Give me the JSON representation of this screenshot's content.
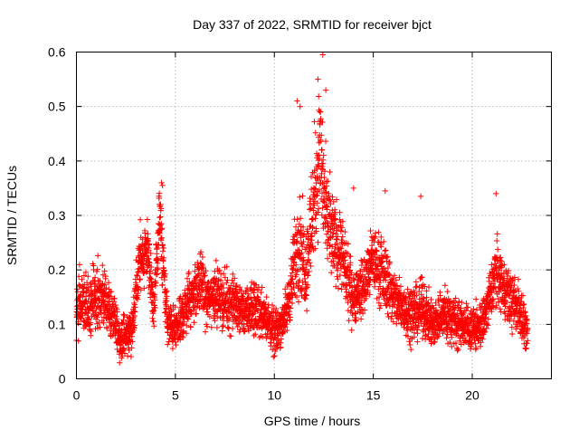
{
  "chart_data": {
    "type": "scatter",
    "title": "Day 337 of 2022, SRMTID for receiver bjct",
    "xlabel": "GPS time / hours",
    "ylabel": "SRMTID / TECUs",
    "xlim": [
      0,
      24
    ],
    "ylim": [
      0,
      0.6
    ],
    "x_ticks": [
      0,
      5,
      10,
      15,
      20
    ],
    "x_tick_labels": [
      "0",
      "5",
      "10",
      "15",
      "20"
    ],
    "y_ticks": [
      0,
      0.1,
      0.2,
      0.3,
      0.4,
      0.5,
      0.6
    ],
    "y_tick_labels": [
      "0",
      "0.1",
      "0.2",
      "0.3",
      "0.4",
      "0.5",
      "0.6"
    ],
    "grid": true,
    "marker": "+",
    "color": "#ff0000",
    "series": [
      {
        "name": "SRMTID",
        "envelope": {
          "x": [
            0,
            0.3,
            0.6,
            1.0,
            1.5,
            2.0,
            2.2,
            2.5,
            2.8,
            3.2,
            3.6,
            3.9,
            4.2,
            4.4,
            4.6,
            5.0,
            5.2,
            5.6,
            6.0,
            6.3,
            6.6,
            7.0,
            7.5,
            8.0,
            8.5,
            9.0,
            9.5,
            10.0,
            10.3,
            10.6,
            10.9,
            11.2,
            11.6,
            12.0,
            12.3,
            12.6,
            12.9,
            13.3,
            13.7,
            14.0,
            14.5,
            15.0,
            15.3,
            15.7,
            16.0,
            16.5,
            17.0,
            17.5,
            18.0,
            18.5,
            19.0,
            19.5,
            20.0,
            20.5,
            20.9,
            21.2,
            21.6,
            22.0,
            22.4,
            22.8
          ],
          "y": [
            0.12,
            0.15,
            0.13,
            0.16,
            0.14,
            0.1,
            0.07,
            0.08,
            0.09,
            0.22,
            0.24,
            0.12,
            0.3,
            0.2,
            0.1,
            0.09,
            0.1,
            0.14,
            0.16,
            0.18,
            0.14,
            0.16,
            0.14,
            0.14,
            0.12,
            0.13,
            0.12,
            0.08,
            0.1,
            0.12,
            0.18,
            0.26,
            0.2,
            0.33,
            0.42,
            0.3,
            0.26,
            0.24,
            0.18,
            0.15,
            0.17,
            0.22,
            0.2,
            0.18,
            0.15,
            0.13,
            0.12,
            0.13,
            0.1,
            0.12,
            0.11,
            0.1,
            0.09,
            0.1,
            0.15,
            0.2,
            0.17,
            0.14,
            0.13,
            0.08
          ],
          "spread": [
            0.05,
            0.06,
            0.05,
            0.06,
            0.05,
            0.04,
            0.03,
            0.04,
            0.04,
            0.06,
            0.06,
            0.04,
            0.06,
            0.05,
            0.04,
            0.04,
            0.04,
            0.05,
            0.05,
            0.05,
            0.05,
            0.05,
            0.05,
            0.05,
            0.04,
            0.05,
            0.04,
            0.04,
            0.04,
            0.04,
            0.06,
            0.1,
            0.07,
            0.12,
            0.12,
            0.1,
            0.08,
            0.07,
            0.06,
            0.05,
            0.05,
            0.06,
            0.06,
            0.06,
            0.05,
            0.05,
            0.05,
            0.05,
            0.04,
            0.05,
            0.05,
            0.04,
            0.04,
            0.04,
            0.05,
            0.06,
            0.05,
            0.05,
            0.05,
            0.03
          ],
          "sample_interval_hours": 0.0125,
          "points_per_sample": 2
        },
        "notable_points": [
          {
            "x": 12.45,
            "y": 0.595
          },
          {
            "x": 12.2,
            "y": 0.55
          },
          {
            "x": 12.6,
            "y": 0.53
          },
          {
            "x": 11.15,
            "y": 0.51
          },
          {
            "x": 11.3,
            "y": 0.5
          },
          {
            "x": 12.3,
            "y": 0.49
          },
          {
            "x": 4.3,
            "y": 0.36
          },
          {
            "x": 4.35,
            "y": 0.355
          },
          {
            "x": 21.2,
            "y": 0.34
          },
          {
            "x": 17.4,
            "y": 0.335
          },
          {
            "x": 15.6,
            "y": 0.345
          },
          {
            "x": 14.0,
            "y": 0.35
          }
        ]
      }
    ]
  }
}
